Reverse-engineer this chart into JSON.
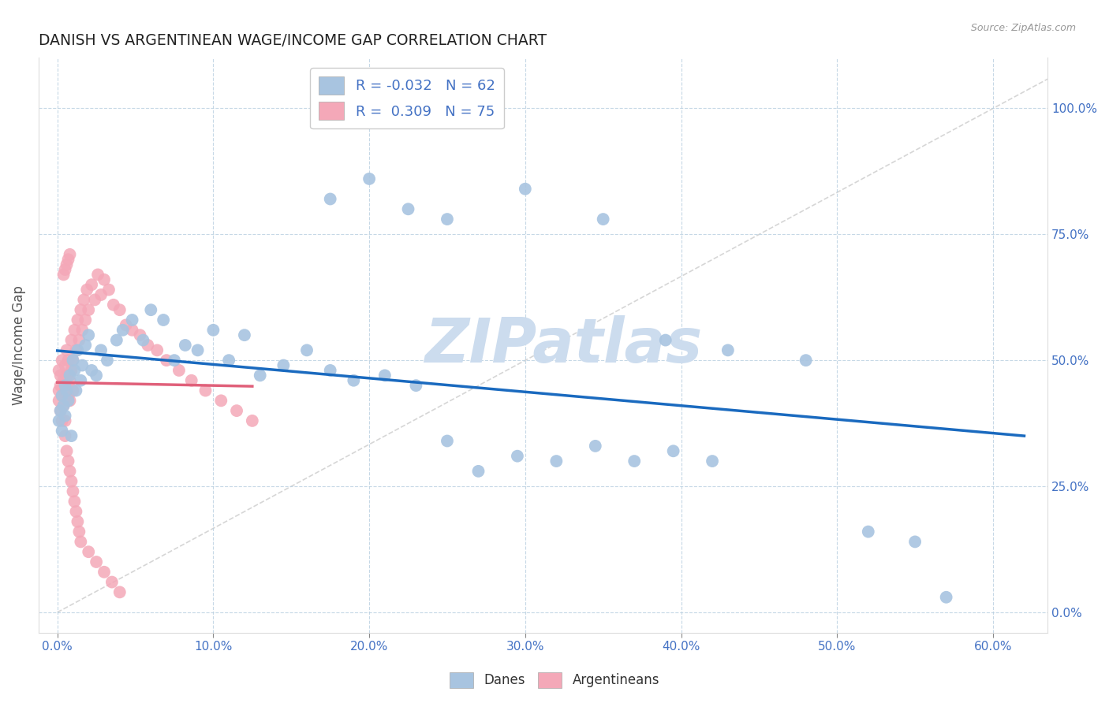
{
  "title": "DANISH VS ARGENTINEAN WAGE/INCOME GAP CORRELATION CHART",
  "source": "Source: ZipAtlas.com",
  "ylabel_label": "Wage/Income Gap",
  "legend_label_danes": "Danes",
  "legend_label_argentineans": "Argentineans",
  "danes_R": "-0.032",
  "danes_N": "62",
  "arg_R": "0.309",
  "arg_N": "75",
  "danes_color": "#a8c4e0",
  "arg_color": "#f4a8b8",
  "danes_line_color": "#1a6abf",
  "arg_line_color": "#e0607a",
  "diagonal_color": "#cccccc",
  "watermark_text": "ZIPatlas",
  "watermark_color": "#ccdcee",
  "xtick_vals": [
    0.0,
    0.1,
    0.2,
    0.3,
    0.4,
    0.5,
    0.6
  ],
  "xtick_labels": [
    "0.0%",
    "10.0%",
    "20.0%",
    "30.0%",
    "40.0%",
    "50.0%",
    "60.0%"
  ],
  "ytick_vals": [
    0.0,
    0.25,
    0.5,
    0.75,
    1.0
  ],
  "ytick_labels_right": [
    "0.0%",
    "25.0%",
    "50.0%",
    "75.0%",
    "100.0%"
  ],
  "xlim": [
    -0.012,
    0.635
  ],
  "ylim": [
    -0.04,
    1.1
  ],
  "danes_x": [
    0.001,
    0.002,
    0.003,
    0.003,
    0.004,
    0.005,
    0.005,
    0.006,
    0.007,
    0.008,
    0.009,
    0.01,
    0.011,
    0.012,
    0.013,
    0.015,
    0.016,
    0.018,
    0.02,
    0.022,
    0.025,
    0.028,
    0.032,
    0.038,
    0.042,
    0.048,
    0.055,
    0.06,
    0.068,
    0.075,
    0.082,
    0.09,
    0.1,
    0.11,
    0.12,
    0.13,
    0.145,
    0.16,
    0.175,
    0.19,
    0.21,
    0.23,
    0.25,
    0.27,
    0.295,
    0.32,
    0.345,
    0.37,
    0.395,
    0.42,
    0.175,
    0.2,
    0.225,
    0.25,
    0.3,
    0.35,
    0.39,
    0.43,
    0.48,
    0.52,
    0.55,
    0.57
  ],
  "danes_y": [
    0.38,
    0.4,
    0.43,
    0.36,
    0.41,
    0.45,
    0.39,
    0.44,
    0.42,
    0.47,
    0.35,
    0.5,
    0.48,
    0.44,
    0.52,
    0.46,
    0.49,
    0.53,
    0.55,
    0.48,
    0.47,
    0.52,
    0.5,
    0.54,
    0.56,
    0.58,
    0.54,
    0.6,
    0.58,
    0.5,
    0.53,
    0.52,
    0.56,
    0.5,
    0.55,
    0.47,
    0.49,
    0.52,
    0.48,
    0.46,
    0.47,
    0.45,
    0.34,
    0.28,
    0.31,
    0.3,
    0.33,
    0.3,
    0.32,
    0.3,
    0.82,
    0.86,
    0.8,
    0.78,
    0.84,
    0.78,
    0.54,
    0.52,
    0.5,
    0.16,
    0.14,
    0.03
  ],
  "arg_x": [
    0.001,
    0.001,
    0.001,
    0.002,
    0.002,
    0.002,
    0.003,
    0.003,
    0.003,
    0.004,
    0.004,
    0.005,
    0.005,
    0.005,
    0.006,
    0.006,
    0.007,
    0.007,
    0.008,
    0.008,
    0.009,
    0.009,
    0.01,
    0.01,
    0.011,
    0.012,
    0.013,
    0.014,
    0.015,
    0.016,
    0.017,
    0.018,
    0.019,
    0.02,
    0.022,
    0.024,
    0.026,
    0.028,
    0.03,
    0.033,
    0.036,
    0.04,
    0.044,
    0.048,
    0.053,
    0.058,
    0.064,
    0.07,
    0.078,
    0.086,
    0.095,
    0.105,
    0.115,
    0.125,
    0.005,
    0.006,
    0.007,
    0.008,
    0.009,
    0.01,
    0.011,
    0.012,
    0.013,
    0.014,
    0.015,
    0.02,
    0.025,
    0.03,
    0.035,
    0.04,
    0.004,
    0.005,
    0.006,
    0.007,
    0.008
  ],
  "arg_y": [
    0.44,
    0.48,
    0.42,
    0.45,
    0.4,
    0.47,
    0.43,
    0.38,
    0.5,
    0.46,
    0.41,
    0.49,
    0.44,
    0.38,
    0.52,
    0.47,
    0.43,
    0.5,
    0.46,
    0.42,
    0.48,
    0.54,
    0.5,
    0.44,
    0.56,
    0.52,
    0.58,
    0.54,
    0.6,
    0.56,
    0.62,
    0.58,
    0.64,
    0.6,
    0.65,
    0.62,
    0.67,
    0.63,
    0.66,
    0.64,
    0.61,
    0.6,
    0.57,
    0.56,
    0.55,
    0.53,
    0.52,
    0.5,
    0.48,
    0.46,
    0.44,
    0.42,
    0.4,
    0.38,
    0.35,
    0.32,
    0.3,
    0.28,
    0.26,
    0.24,
    0.22,
    0.2,
    0.18,
    0.16,
    0.14,
    0.12,
    0.1,
    0.08,
    0.06,
    0.04,
    0.67,
    0.68,
    0.69,
    0.7,
    0.71
  ]
}
